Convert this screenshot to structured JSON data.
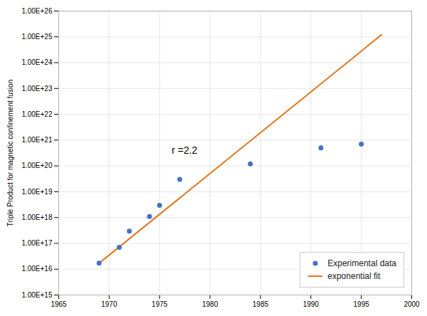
{
  "chart_data": {
    "type": "scatter",
    "ylabel": "Triple Product for magnetic confinement fusion",
    "xlim": [
      1965,
      2000
    ],
    "ylim": [
      1000000000000000.0,
      1e+26
    ],
    "xticks": [
      1965,
      1970,
      1975,
      1980,
      1985,
      1990,
      1995,
      2000
    ],
    "yticks": [
      {
        "value": 1000000000000000.0,
        "label": "1.00E+15"
      },
      {
        "value": 1e+16,
        "label": "1.00E+16"
      },
      {
        "value": 1e+17,
        "label": "1.00E+17"
      },
      {
        "value": 1e+18,
        "label": "1.00E+18"
      },
      {
        "value": 1e+19,
        "label": "1.00E+19"
      },
      {
        "value": 1e+20,
        "label": "1.00E+20"
      },
      {
        "value": 1e+21,
        "label": "1.00E+21"
      },
      {
        "value": 1e+22,
        "label": "1.00E+22"
      },
      {
        "value": 1e+23,
        "label": "1.00E+23"
      },
      {
        "value": 1e+24,
        "label": "1.00E+24"
      },
      {
        "value": 1e+25,
        "label": "1.00E+25"
      },
      {
        "value": 1e+26,
        "label": "1.00E+26"
      }
    ],
    "log": "y",
    "grid": true,
    "legend": "lower right",
    "series": [
      {
        "name": "Experimental data",
        "type": "scatter",
        "color": "#4472c4",
        "x": [
          1969,
          1971,
          1972,
          1974,
          1975,
          1977,
          1984,
          1991,
          1995
        ],
        "values": [
          1.7e+16,
          7e+16,
          3e+17,
          1.1e+18,
          3e+18,
          3e+19,
          1.2e+20,
          5e+20,
          7e+20
        ]
      },
      {
        "name": "exponential fit",
        "type": "line",
        "color": "#e07820",
        "x": [
          1969,
          1997
        ],
        "values": [
          1.7e+16,
          1.2e+25
        ]
      }
    ],
    "annotations": [
      {
        "text": "r =2.2",
        "x": 1976.2,
        "y": 3e+20
      }
    ]
  }
}
